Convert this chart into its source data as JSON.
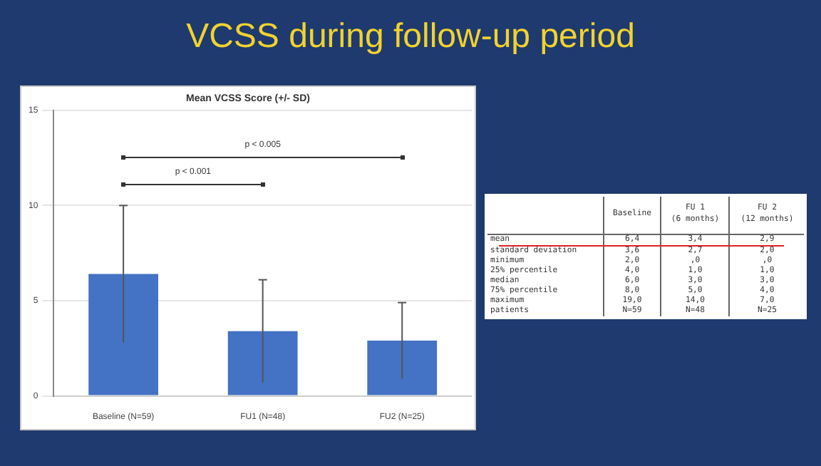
{
  "chart_data": {
    "type": "bar",
    "title": "VCSS during follow-up period",
    "subtitle": "Mean VCSS Score (+/- SD)",
    "categories": [
      "Baseline (N=59)",
      "FU1 (N=48)",
      "FU2 (N=25)"
    ],
    "values": [
      6.4,
      3.4,
      2.9
    ],
    "errors": [
      3.6,
      2.7,
      2.0
    ],
    "color": "#4472c4",
    "ylim": [
      0,
      15
    ],
    "yticks": [
      0,
      5,
      10,
      15
    ],
    "grid": "y",
    "legend": false,
    "annotations": [
      "p < 0.001",
      "p < 0.005",
      "\tBaseline\tFU 1\n(6 months)\tFU 2\n(12 months)",
      "mean\t6,4\t3,4\t2,9",
      "standard deviation\t3,6\t2,7\t2,0",
      "minimum\t2,0\t,0\t,0",
      "25% percentile\t4,0\t1,0\t1,0",
      "median\t6,0\t3,0\t3,0",
      "75% percentile\t8,0\t5,0\t4,0",
      "maximum\t19,0\t14,0\t7,0",
      "patients\tN=59\tN=48\tN=25"
    ]
  }
}
